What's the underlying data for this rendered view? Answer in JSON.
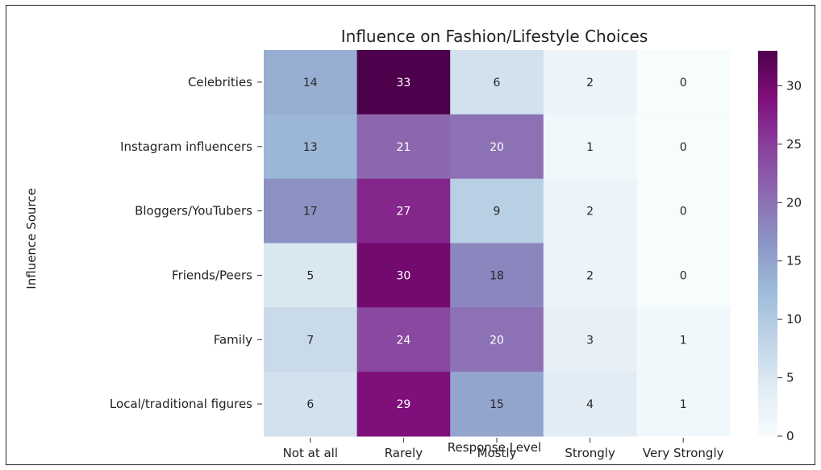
{
  "chart_data": {
    "type": "heatmap",
    "title": "Influence on Fashion/Lifestyle Choices",
    "xlabel": "Response Level",
    "ylabel": "Influence Source",
    "x_categories": [
      "Not at all",
      "Rarely",
      "Mostly",
      "Strongly",
      "Very Strongly"
    ],
    "y_categories": [
      "Celebrities",
      "Instagram influencers",
      "Bloggers/YouTubers",
      "Friends/Peers",
      "Family",
      "Local/traditional figures"
    ],
    "values": [
      [
        14,
        33,
        6,
        2,
        0
      ],
      [
        13,
        21,
        20,
        1,
        0
      ],
      [
        17,
        27,
        9,
        2,
        0
      ],
      [
        5,
        30,
        18,
        2,
        0
      ],
      [
        7,
        24,
        20,
        3,
        1
      ],
      [
        6,
        29,
        15,
        4,
        1
      ]
    ],
    "colormap": "BuPu",
    "vmin": 0,
    "vmax": 33,
    "colorbar_ticks": [
      0,
      5,
      10,
      15,
      20,
      25,
      30
    ],
    "annotated": true
  }
}
